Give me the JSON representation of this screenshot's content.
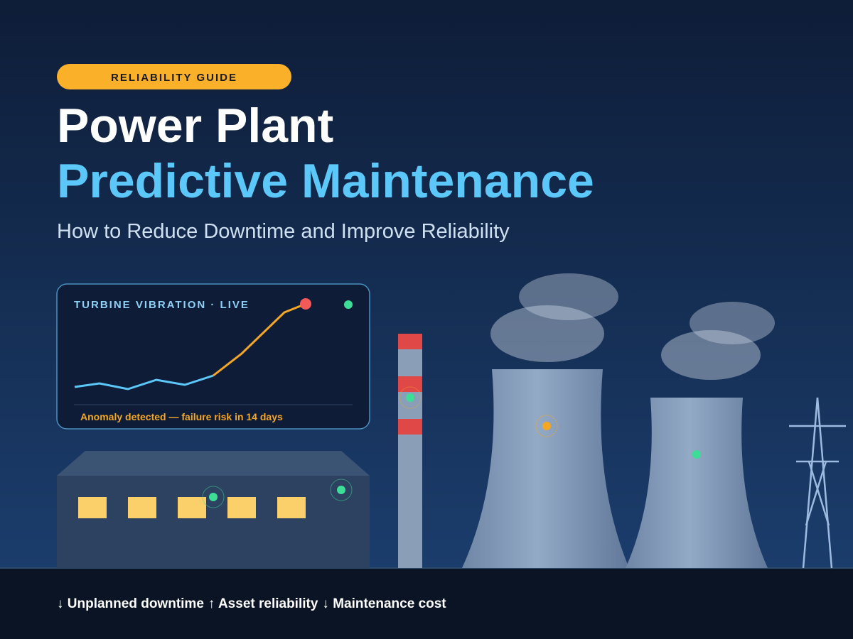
{
  "badge": "RELIABILITY GUIDE",
  "title": {
    "line1": "Power Plant",
    "line2": "Predictive Maintenance"
  },
  "subtitle": "How to Reduce Downtime and Improve Reliability",
  "monitor": {
    "label": "TURBINE VIBRATION · LIVE",
    "alert": "Anomaly detected — failure risk in 14 days"
  },
  "footer": {
    "items": [
      "↓ Unplanned downtime",
      "↑ Asset reliability",
      "↓ Maintenance cost"
    ]
  }
}
